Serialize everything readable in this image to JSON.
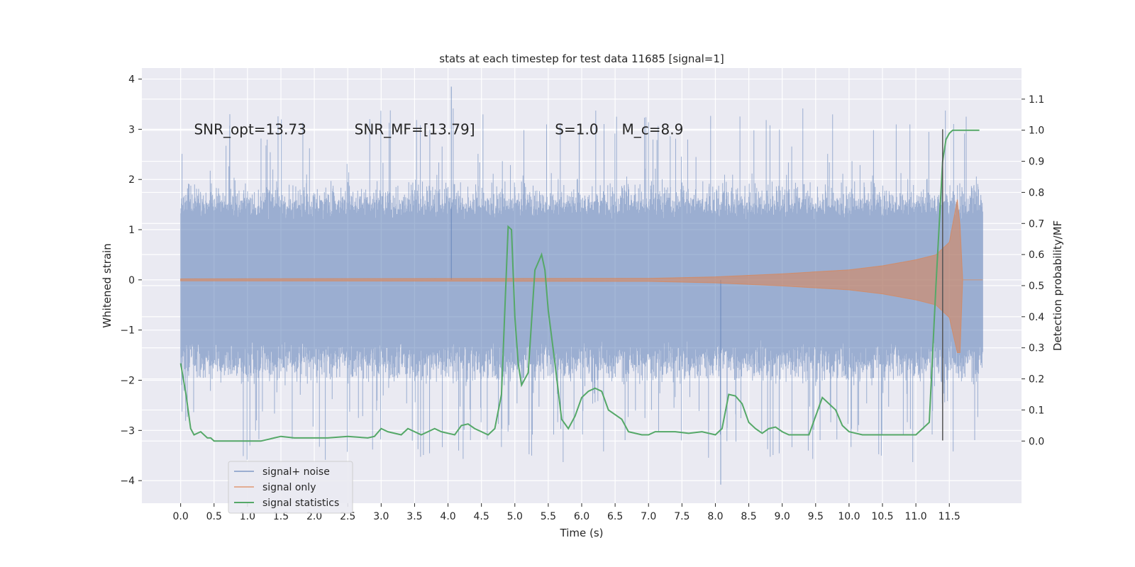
{
  "chart_data": {
    "type": "line",
    "title": "stats at each timestep for test data 11685 [signal=1]",
    "xlabel": "Time (s)",
    "ylabel_left": "Whitened strain",
    "ylabel_right": "Detection probability/MF",
    "xlim": [
      -0.58,
      12.58
    ],
    "ylim_left": [
      -4.45,
      4.22
    ],
    "ylim_right": [
      -0.2,
      1.2
    ],
    "x_ticks": [
      0.0,
      0.5,
      1.0,
      1.5,
      2.0,
      2.5,
      3.0,
      3.5,
      4.0,
      4.5,
      5.0,
      5.5,
      6.0,
      6.5,
      7.0,
      7.5,
      8.0,
      8.5,
      9.0,
      9.5,
      10.0,
      10.5,
      11.0,
      11.5
    ],
    "x_tick_labels": [
      "0.0",
      "0.5",
      "1.0",
      "1.5",
      "2.0",
      "2.5",
      "3.0",
      "3.5",
      "4.0",
      "4.5",
      "5.0",
      "5.5",
      "6.0",
      "6.5",
      "7.0",
      "7.5",
      "8.0",
      "8.5",
      "9.0",
      "9.5",
      "10.0",
      "10.5",
      "11.0",
      "11.5"
    ],
    "y_left_ticks": [
      -4,
      -3,
      -2,
      -1,
      0,
      1,
      2,
      3,
      4
    ],
    "y_left_tick_labels": [
      "−4",
      "−3",
      "−2",
      "−1",
      "0",
      "1",
      "2",
      "3",
      "4"
    ],
    "y_right_ticks": [
      0.0,
      0.1,
      0.2,
      0.3,
      0.4,
      0.5,
      0.6,
      0.7,
      0.8,
      0.9,
      1.0,
      1.1
    ],
    "y_right_tick_labels": [
      "0.0",
      "0.1",
      "0.2",
      "0.3",
      "0.4",
      "0.5",
      "0.6",
      "0.7",
      "0.8",
      "0.9",
      "1.0",
      "1.1"
    ],
    "grid": true,
    "legend_position": "lower-left",
    "annotations": [
      {
        "text": "SNR_opt=13.73",
        "x": 0.2,
        "y": 3.0
      },
      {
        "text": "SNR_MF=[13.79]",
        "x": 2.6,
        "y": 3.0
      },
      {
        "text": "S=1.0",
        "x": 5.6,
        "y": 3.0
      },
      {
        "text": "M_c=8.9",
        "x": 6.6,
        "y": 3.0
      }
    ],
    "marker_line": {
      "x": 11.4,
      "y_range": [
        -3.2,
        3.0
      ],
      "color": "#555555"
    },
    "noise_envelope": {
      "x_range": [
        0.0,
        12.0
      ],
      "typical_upper": 1.9,
      "typical_lower": -1.9,
      "peak_upper": 3.85,
      "peak_lower": -4.08
    },
    "series": [
      {
        "name": "signal+ noise",
        "color": "#4c72b0",
        "axis": "left"
      },
      {
        "name": "signal only",
        "color": "#dd8452",
        "axis": "left",
        "x": [
          0,
          7.0,
          8.0,
          9.0,
          10.0,
          10.5,
          11.0,
          11.3,
          11.5,
          11.62,
          11.66,
          11.7,
          12.0
        ],
        "amplitude": [
          0.02,
          0.03,
          0.06,
          0.12,
          0.2,
          0.28,
          0.4,
          0.5,
          0.75,
          1.6,
          1.1,
          0.0,
          0.0
        ]
      },
      {
        "name": "signal statistics",
        "color": "#55a868",
        "axis": "right",
        "x": [
          0.0,
          0.08,
          0.15,
          0.2,
          0.3,
          0.4,
          0.45,
          0.5,
          0.6,
          0.8,
          1.0,
          1.2,
          1.4,
          1.5,
          1.7,
          2.0,
          2.2,
          2.5,
          2.8,
          2.9,
          3.0,
          3.1,
          3.3,
          3.4,
          3.5,
          3.6,
          3.8,
          3.9,
          4.1,
          4.2,
          4.3,
          4.4,
          4.5,
          4.6,
          4.7,
          4.8,
          4.9,
          4.95,
          5.0,
          5.05,
          5.1,
          5.15,
          5.2,
          5.3,
          5.4,
          5.45,
          5.5,
          5.6,
          5.7,
          5.8,
          5.9,
          6.0,
          6.1,
          6.2,
          6.3,
          6.4,
          6.6,
          6.7,
          6.9,
          7.0,
          7.1,
          7.2,
          7.4,
          7.6,
          7.8,
          8.0,
          8.1,
          8.2,
          8.3,
          8.4,
          8.5,
          8.6,
          8.7,
          8.8,
          8.9,
          9.0,
          9.1,
          9.2,
          9.3,
          9.4,
          9.6,
          9.8,
          9.9,
          10.0,
          10.1,
          10.2,
          10.3,
          10.4,
          10.6,
          10.8,
          11.0,
          11.2,
          11.3,
          11.4,
          11.45,
          11.5,
          11.55,
          11.6,
          11.7,
          11.8,
          11.95
        ],
        "y": [
          0.25,
          0.15,
          0.04,
          0.02,
          0.03,
          0.01,
          0.01,
          0.0,
          0.0,
          0.0,
          0.0,
          0.0,
          0.01,
          0.015,
          0.01,
          0.01,
          0.01,
          0.015,
          0.01,
          0.015,
          0.04,
          0.03,
          0.02,
          0.04,
          0.03,
          0.02,
          0.04,
          0.03,
          0.02,
          0.05,
          0.055,
          0.04,
          0.03,
          0.02,
          0.04,
          0.15,
          0.69,
          0.68,
          0.4,
          0.25,
          0.18,
          0.2,
          0.22,
          0.55,
          0.6,
          0.55,
          0.42,
          0.25,
          0.07,
          0.04,
          0.08,
          0.14,
          0.16,
          0.17,
          0.16,
          0.1,
          0.07,
          0.03,
          0.02,
          0.02,
          0.03,
          0.03,
          0.03,
          0.025,
          0.03,
          0.02,
          0.04,
          0.15,
          0.145,
          0.12,
          0.06,
          0.04,
          0.025,
          0.04,
          0.045,
          0.03,
          0.02,
          0.02,
          0.02,
          0.02,
          0.14,
          0.1,
          0.05,
          0.03,
          0.025,
          0.02,
          0.02,
          0.02,
          0.02,
          0.02,
          0.02,
          0.06,
          0.5,
          0.9,
          0.97,
          0.99,
          1.0,
          1.0,
          1.0,
          1.0,
          1.0
        ]
      }
    ]
  }
}
